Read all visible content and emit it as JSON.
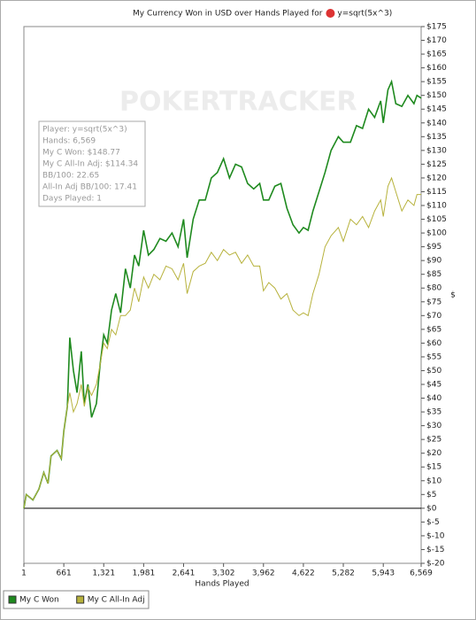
{
  "chart_data": {
    "type": "line",
    "title": "My Currency Won in USD over Hands Played for",
    "title_player": "y=sqrt(5x^3)",
    "watermark": "POKERTRACKER",
    "x_label": "Hands Played",
    "y_label": "$",
    "xlim": [
      1,
      6569
    ],
    "xticks": [
      1,
      661,
      {
        "value": 1321,
        "label": "1,321"
      },
      {
        "value": 1981,
        "label": "1,981"
      },
      {
        "value": 2641,
        "label": "2,641"
      },
      {
        "value": 3302,
        "label": "3,302"
      },
      {
        "value": 3962,
        "label": "3,962"
      },
      {
        "value": 4622,
        "label": "4,622"
      },
      {
        "value": 5282,
        "label": "5,282"
      },
      {
        "value": 5943,
        "label": "5,943"
      },
      {
        "value": 6569,
        "label": "6,569"
      }
    ],
    "ylim": [
      -20,
      175
    ],
    "yticks": [
      {
        "value": -20,
        "label": "$-20"
      },
      {
        "value": -15,
        "label": "$-15"
      },
      {
        "value": -10,
        "label": "$-10"
      },
      {
        "value": -5,
        "label": "$-5"
      },
      {
        "value": 0,
        "label": "$0"
      },
      {
        "value": 5,
        "label": "$5"
      },
      {
        "value": 10,
        "label": "$10"
      },
      {
        "value": 15,
        "label": "$15"
      },
      {
        "value": 20,
        "label": "$20"
      },
      {
        "value": 25,
        "label": "$25"
      },
      {
        "value": 30,
        "label": "$30"
      },
      {
        "value": 35,
        "label": "$35"
      },
      {
        "value": 40,
        "label": "$40"
      },
      {
        "value": 45,
        "label": "$45"
      },
      {
        "value": 50,
        "label": "$50"
      },
      {
        "value": 55,
        "label": "$55"
      },
      {
        "value": 60,
        "label": "$60"
      },
      {
        "value": 65,
        "label": "$65"
      },
      {
        "value": 70,
        "label": "$70"
      },
      {
        "value": 75,
        "label": "$75"
      },
      {
        "value": 80,
        "label": "$80"
      },
      {
        "value": 85,
        "label": "$85"
      },
      {
        "value": 90,
        "label": "$90"
      },
      {
        "value": 95,
        "label": "$95"
      },
      {
        "value": 100,
        "label": "$100"
      },
      {
        "value": 105,
        "label": "$105"
      },
      {
        "value": 110,
        "label": "$110"
      },
      {
        "value": 115,
        "label": "$115"
      },
      {
        "value": 120,
        "label": "$120"
      },
      {
        "value": 125,
        "label": "$125"
      },
      {
        "value": 130,
        "label": "$130"
      },
      {
        "value": 135,
        "label": "$135"
      },
      {
        "value": 140,
        "label": "$140"
      },
      {
        "value": 145,
        "label": "$145"
      },
      {
        "value": 150,
        "label": "$150"
      },
      {
        "value": 155,
        "label": "$155"
      },
      {
        "value": 160,
        "label": "$160"
      },
      {
        "value": 165,
        "label": "$165"
      },
      {
        "value": 170,
        "label": "$170"
      },
      {
        "value": 175,
        "label": "$175"
      }
    ],
    "x": [
      1,
      40,
      150,
      250,
      330,
      400,
      450,
      550,
      620,
      661,
      720,
      760,
      820,
      880,
      950,
      1000,
      1060,
      1120,
      1200,
      1260,
      1321,
      1380,
      1450,
      1520,
      1600,
      1680,
      1760,
      1830,
      1900,
      1981,
      2060,
      2150,
      2250,
      2350,
      2450,
      2550,
      2641,
      2700,
      2800,
      2900,
      3000,
      3100,
      3200,
      3302,
      3400,
      3500,
      3600,
      3700,
      3800,
      3900,
      3962,
      4050,
      4150,
      4250,
      4350,
      4450,
      4550,
      4622,
      4700,
      4780,
      4880,
      4980,
      5080,
      5200,
      5282,
      5400,
      5500,
      5600,
      5700,
      5800,
      5900,
      5943,
      6020,
      6080,
      6150,
      6250,
      6350,
      6450,
      6500,
      6569
    ],
    "series": [
      {
        "name": "My C Won",
        "color": "#1f8a1f",
        "values": [
          0,
          5,
          3,
          7,
          13,
          9,
          19,
          21,
          18,
          28,
          37,
          62,
          50,
          42,
          57,
          38,
          45,
          33,
          38,
          52,
          63,
          60,
          72,
          78,
          71,
          87,
          80,
          92,
          88,
          101,
          92,
          94,
          98,
          97,
          100,
          95,
          105,
          91,
          105,
          112,
          112,
          120,
          122,
          127,
          120,
          125,
          124,
          118,
          116,
          118,
          112,
          112,
          117,
          118,
          109,
          103,
          100,
          102,
          101,
          108,
          115,
          122,
          130,
          135,
          133,
          133,
          139,
          138,
          145,
          142,
          148,
          140,
          152,
          155,
          147,
          146,
          150,
          147,
          150,
          149
        ]
      },
      {
        "name": "My C All-In Adj",
        "color": "#b7b23c",
        "values": [
          0,
          5,
          3,
          7,
          13,
          9,
          19,
          21,
          18,
          28,
          37,
          42,
          35,
          38,
          45,
          37,
          44,
          41,
          45,
          52,
          60,
          58,
          65,
          63,
          70,
          70,
          72,
          80,
          75,
          84,
          80,
          85,
          83,
          88,
          87,
          83,
          89,
          78,
          86,
          88,
          89,
          93,
          90,
          94,
          92,
          93,
          89,
          92,
          88,
          88,
          79,
          82,
          80,
          76,
          78,
          72,
          70,
          71,
          70,
          78,
          85,
          95,
          99,
          102,
          97,
          105,
          103,
          106,
          102,
          108,
          112,
          106,
          117,
          120,
          115,
          108,
          112,
          110,
          114,
          114
        ]
      }
    ],
    "info_box": [
      "Player: y=sqrt(5x^3)",
      "Hands: 6,569",
      "My C Won: $148.77",
      "My C All-In Adj: $114.34",
      "BB/100: 22.65",
      "All-In Adj BB/100: 17.41",
      "Days Played: 1"
    ],
    "zero_line": true,
    "grid": false,
    "legend": "bottom-left"
  }
}
